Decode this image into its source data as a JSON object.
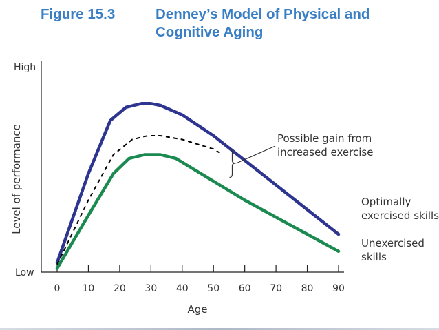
{
  "slide": {
    "figure_number": "Figure 15.3",
    "title_line1": "Denney’s Model of Physical and",
    "title_line2": "Cognitive Aging"
  },
  "chart_data": {
    "type": "line",
    "title": "Denney’s Model of Physical and Cognitive Aging",
    "xlabel": "Age",
    "ylabel": "Level of performance",
    "xlim": [
      -5,
      92
    ],
    "ylim": [
      0,
      100
    ],
    "x_ticks": [
      0,
      10,
      20,
      30,
      40,
      50,
      60,
      70,
      80,
      90
    ],
    "y_tick_labels": {
      "high": "High",
      "low": "Low"
    },
    "grid": false,
    "series": [
      {
        "name": "Optimally exercised skills",
        "label_lines": [
          "Optimally",
          "exercised skills"
        ],
        "color": "#2e3590",
        "style": "solid",
        "x": [
          0,
          10,
          17,
          22,
          27,
          30,
          33,
          40,
          50,
          60,
          70,
          80,
          90
        ],
        "y": [
          5,
          52,
          80,
          87,
          89,
          89,
          88,
          83,
          72,
          59,
          46,
          33,
          20
        ]
      },
      {
        "name": "Possible gain from increased exercise",
        "color": "#000000",
        "style": "dashed",
        "x": [
          0,
          10,
          18,
          24,
          29,
          33,
          40,
          50,
          52
        ],
        "y": [
          4,
          38,
          62,
          70,
          72,
          72,
          70,
          65,
          63
        ]
      },
      {
        "name": "Unexercised skills",
        "label_lines": [
          "Unexercised",
          "skills"
        ],
        "color": "#1b8a50",
        "style": "solid",
        "x": [
          0,
          10,
          18,
          23,
          28,
          33,
          38,
          50,
          60,
          70,
          80,
          90
        ],
        "y": [
          2,
          30,
          52,
          60,
          62,
          62,
          60,
          48,
          38,
          29,
          20,
          11
        ]
      }
    ],
    "annotations": [
      {
        "text_lines": [
          "Possible gain from",
          "increased exercise"
        ],
        "points_to": "brace",
        "brace_x": 56,
        "brace_y": [
          50,
          65
        ]
      }
    ]
  }
}
